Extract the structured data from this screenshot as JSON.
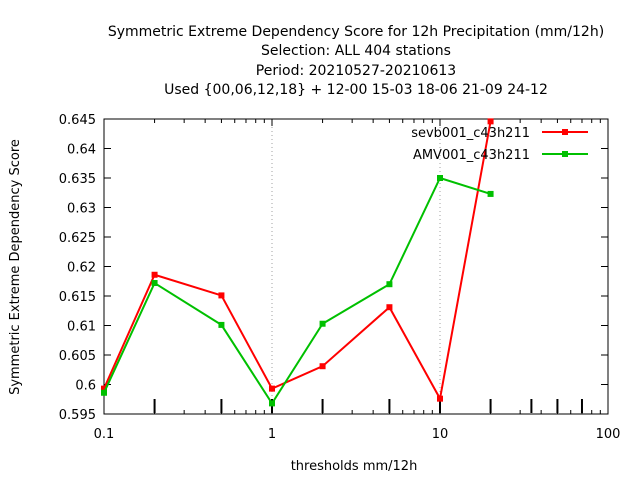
{
  "chart_data": {
    "type": "line",
    "title_lines": [
      "Symmetric Extreme Dependency Score  for 12h Precipitation (mm/12h)",
      "Selection: ALL    404 stations",
      "Period: 20210527-20210613",
      "Used {00,06,12,18} + 12-00 15-03 18-06 21-09 24-12"
    ],
    "xlabel": "thresholds mm/12h",
    "ylabel": "Symmetric Extreme Dependency Score",
    "x_scale": "log",
    "xlim": [
      0.1,
      100
    ],
    "ylim": [
      0.595,
      0.645
    ],
    "x_ticks": [
      "0.1",
      "1",
      "10",
      "100"
    ],
    "y_ticks": [
      "0.595",
      "0.6",
      "0.605",
      "0.61",
      "0.615",
      "0.62",
      "0.625",
      "0.63",
      "0.635",
      "0.64",
      "0.645"
    ],
    "threshold_ticks": [
      0.2,
      0.5,
      1,
      2,
      5,
      10,
      20,
      35,
      50,
      70
    ],
    "grid": "vertical dotted at decades",
    "legend_position": "top-right",
    "series": [
      {
        "name": "sevb001_c43h211",
        "color": "#ff0000",
        "x": [
          0.1,
          0.2,
          0.5,
          1,
          2,
          5,
          10,
          20
        ],
        "y": [
          0.5993,
          0.6186,
          0.6151,
          0.5993,
          0.6031,
          0.6131,
          0.5976,
          0.6446
        ]
      },
      {
        "name": "AMV001_c43h211",
        "color": "#00c000",
        "x": [
          0.1,
          0.2,
          0.5,
          1,
          2,
          5,
          10,
          20
        ],
        "y": [
          0.5986,
          0.6172,
          0.6101,
          0.5968,
          0.6103,
          0.617,
          0.635,
          0.6323
        ]
      }
    ]
  }
}
